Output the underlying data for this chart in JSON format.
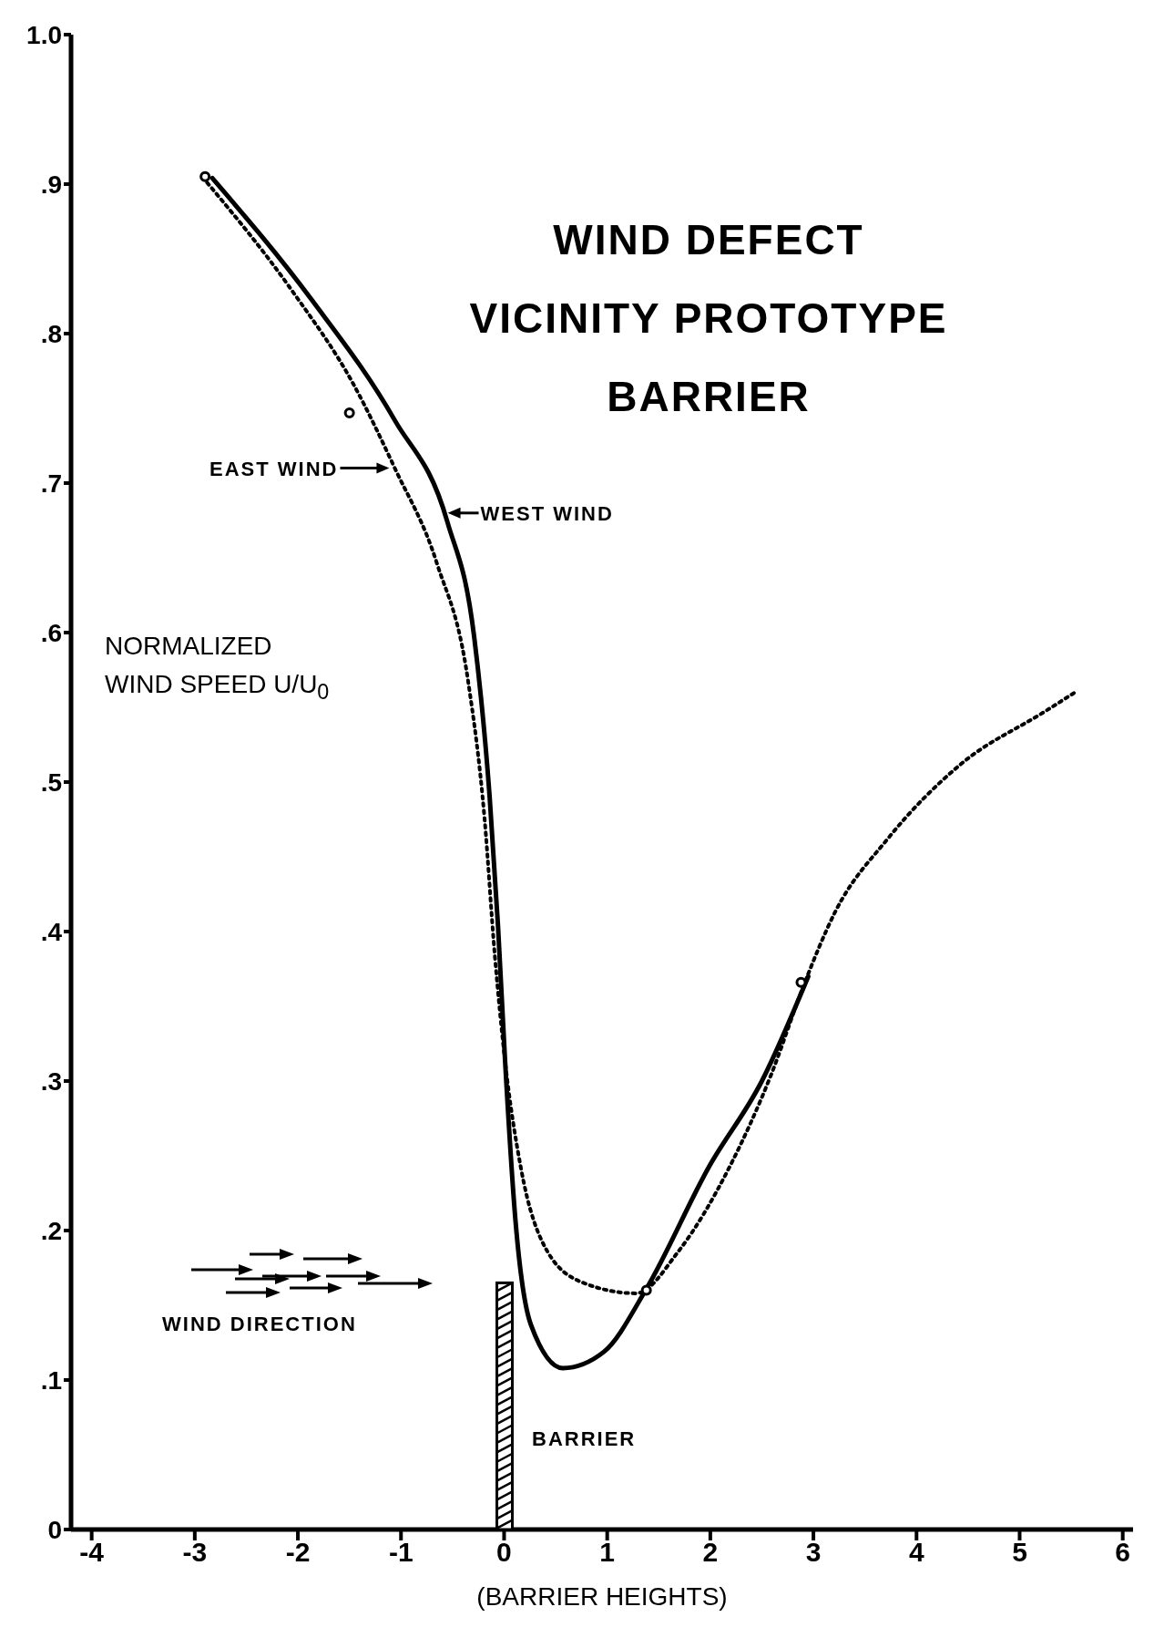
{
  "chart_data": {
    "type": "line",
    "title": "WIND DEFECT\nVICINITY PROTOTYPE\nBARRIER",
    "xlabel": "(BARRIER HEIGHTS)",
    "ylabel": "NORMALIZED\nWIND SPEED U/U$_{0}$",
    "xlim": [
      -4.2,
      6.1
    ],
    "xticks": [
      -4,
      -3,
      -2,
      -1,
      0,
      1,
      2,
      3,
      4,
      5,
      6
    ],
    "ylim": [
      0,
      1.0
    ],
    "yticks": [
      0,
      {
        "value": 0.1,
        "label": ".1"
      },
      {
        "value": 0.2,
        "label": ".2"
      },
      {
        "value": 0.3,
        "label": ".3"
      },
      {
        "value": 0.4,
        "label": ".4"
      },
      {
        "value": 0.5,
        "label": ".5"
      },
      {
        "value": 0.6,
        "label": ".6"
      },
      {
        "value": 0.7,
        "label": ".7"
      },
      {
        "value": 0.8,
        "label": ".8"
      },
      {
        "value": 0.9,
        "label": ".9"
      },
      {
        "value": 1.0,
        "label": "1.0"
      }
    ],
    "series": [
      {
        "color": "#000000",
        "line_style": "solid",
        "x": [
          -2.83,
          -1.87,
          -1.06,
          -0.55,
          -0.29,
          -0.14,
          -0.06,
          0.01,
          0.11,
          0.26,
          0.57,
          0.97,
          1.38,
          1.99,
          2.5,
          2.95
        ],
        "values": [
          0.904,
          0.823,
          0.742,
          0.674,
          0.597,
          0.49,
          0.405,
          0.313,
          0.207,
          0.137,
          0.108,
          0.119,
          0.161,
          0.243,
          0.3,
          0.37
        ]
      },
      {
        "color": "#000000",
        "line_style": "dotted",
        "x": [
          -2.88,
          -2.07,
          -1.46,
          -1.06,
          -0.65,
          -0.35,
          -0.19,
          -0.09,
          0.01,
          0.16,
          0.42,
          0.77,
          1.28,
          1.69,
          2.19,
          2.6,
          2.9,
          3.21,
          3.72,
          4.43,
          5.24,
          5.56
        ],
        "values": [
          0.901,
          0.83,
          0.766,
          0.71,
          0.646,
          0.568,
          0.476,
          0.384,
          0.313,
          0.243,
          0.186,
          0.165,
          0.158,
          0.186,
          0.243,
          0.306,
          0.363,
          0.413,
          0.462,
          0.512,
          0.547,
          0.561
        ]
      },
      {
        "type": "scatter",
        "color": "#000000",
        "marker": "circle",
        "x": [
          -2.9,
          -1.5,
          1.38,
          2.88
        ],
        "values": [
          0.905,
          0.747,
          0.16,
          0.366
        ]
      }
    ],
    "annotations": [
      {
        "text": "EAST WIND",
        "x": -1.06,
        "y": 0.71
      },
      {
        "text": "WEST WIND",
        "x": -0.6,
        "y": 0.68
      },
      "WIND DIRECTION",
      "BARRIER"
    ]
  }
}
